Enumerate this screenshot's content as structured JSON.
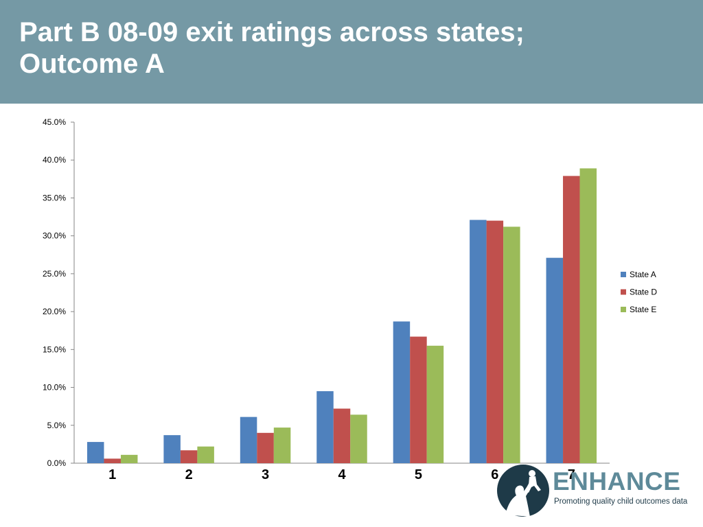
{
  "slide": {
    "title_line1": "Part B 08-09 exit ratings across states;",
    "title_line2": "Outcome A"
  },
  "logo": {
    "wordmark": "ENHANCE",
    "tagline": "Promoting quality child outcomes data",
    "icon": "parent-lifting-child-icon"
  },
  "colors": {
    "header_bg": "#7599a5",
    "state_a": "#4f81bd",
    "state_d": "#c0504d",
    "state_e": "#9bbb59"
  },
  "chart_data": {
    "type": "bar",
    "title": "",
    "xlabel": "",
    "ylabel": "",
    "categories": [
      "1",
      "2",
      "3",
      "4",
      "5",
      "6",
      "7"
    ],
    "ylim": [
      0,
      45
    ],
    "ytick_step": 5,
    "ytick_labels": [
      "0.0%",
      "5.0%",
      "10.0%",
      "15.0%",
      "20.0%",
      "25.0%",
      "30.0%",
      "35.0%",
      "40.0%",
      "45.0%"
    ],
    "grid": false,
    "legend_position": "right",
    "series": [
      {
        "name": "State A",
        "color": "#4f81bd",
        "values": [
          2.8,
          3.7,
          6.1,
          9.5,
          18.7,
          32.1,
          27.1
        ]
      },
      {
        "name": "State D",
        "color": "#c0504d",
        "values": [
          0.6,
          1.7,
          4.0,
          7.2,
          16.7,
          32.0,
          37.9
        ]
      },
      {
        "name": "State E",
        "color": "#9bbb59",
        "values": [
          1.1,
          2.2,
          4.7,
          6.4,
          15.5,
          31.2,
          38.9
        ]
      }
    ]
  }
}
